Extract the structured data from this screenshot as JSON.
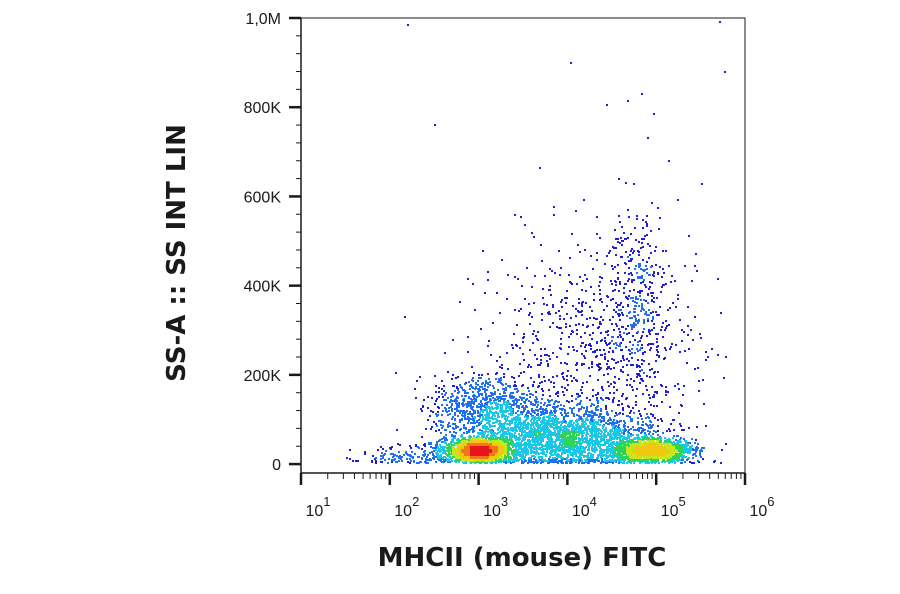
{
  "chart_data": {
    "type": "scatter",
    "subtype": "flow-cytometry-density-dot-plot",
    "xlabel": "MHCII (mouse) FITC",
    "ylabel": "SS-A :: SS INT LIN",
    "x_scale": "log",
    "xlim": [
      10,
      1000000
    ],
    "ylim": [
      -20000,
      1000000
    ],
    "x_ticks": [
      {
        "value": 10,
        "base": "10",
        "exp": "1"
      },
      {
        "value": 100,
        "base": "10",
        "exp": "2"
      },
      {
        "value": 1000,
        "base": "10",
        "exp": "3"
      },
      {
        "value": 10000,
        "base": "10",
        "exp": "4"
      },
      {
        "value": 100000,
        "base": "10",
        "exp": "5"
      },
      {
        "value": 1000000,
        "base": "10",
        "exp": "6"
      }
    ],
    "y_ticks": [
      {
        "value": 0,
        "label": "0"
      },
      {
        "value": 200000,
        "label": "200K"
      },
      {
        "value": 400000,
        "label": "400K"
      },
      {
        "value": 600000,
        "label": "600K"
      },
      {
        "value": 800000,
        "label": "800K"
      },
      {
        "value": 1000000,
        "label": "1,0M"
      }
    ],
    "density_colormap": [
      "#1f1fd6",
      "#1f6ff0",
      "#19c8e6",
      "#2fd25a",
      "#c8e619",
      "#f0c814",
      "#f07814",
      "#e6141e"
    ],
    "populations": [
      {
        "x_center": 1000,
        "y_center": 30000,
        "x_spread_decades": 0.18,
        "y_spread": 12000,
        "count": 2200
      },
      {
        "x_center": 90000,
        "y_center": 30000,
        "x_spread_decades": 0.22,
        "y_spread": 12000,
        "count": 1600
      },
      {
        "x_center": 8000,
        "y_center": 60000,
        "x_spread_decades": 0.55,
        "y_spread": 35000,
        "count": 2600
      },
      {
        "x_center": 1200,
        "y_center": 130000,
        "x_spread_decades": 0.3,
        "y_spread": 35000,
        "count": 700
      },
      {
        "x_center": 20000,
        "y_center": 250000,
        "x_spread_decades": 0.6,
        "y_spread": 130000,
        "count": 800
      },
      {
        "x_center": 60000,
        "y_center": 380000,
        "x_spread_decades": 0.18,
        "y_spread": 110000,
        "count": 300
      },
      {
        "x_center": 200,
        "y_center": 15000,
        "x_spread_decades": 0.4,
        "y_spread": 12000,
        "count": 180
      }
    ],
    "outliers": [
      {
        "x": 160,
        "y": 985000
      },
      {
        "x": 520000,
        "y": 990000
      },
      {
        "x": 11000,
        "y": 900000
      },
      {
        "x": 600000,
        "y": 880000
      },
      {
        "x": 320,
        "y": 760000
      },
      {
        "x": 28000,
        "y": 805000
      },
      {
        "x": 48000,
        "y": 815000
      },
      {
        "x": 70000,
        "y": 830000
      },
      {
        "x": 95000,
        "y": 785000
      },
      {
        "x": 80000,
        "y": 730000
      },
      {
        "x": 150,
        "y": 330000
      }
    ]
  }
}
